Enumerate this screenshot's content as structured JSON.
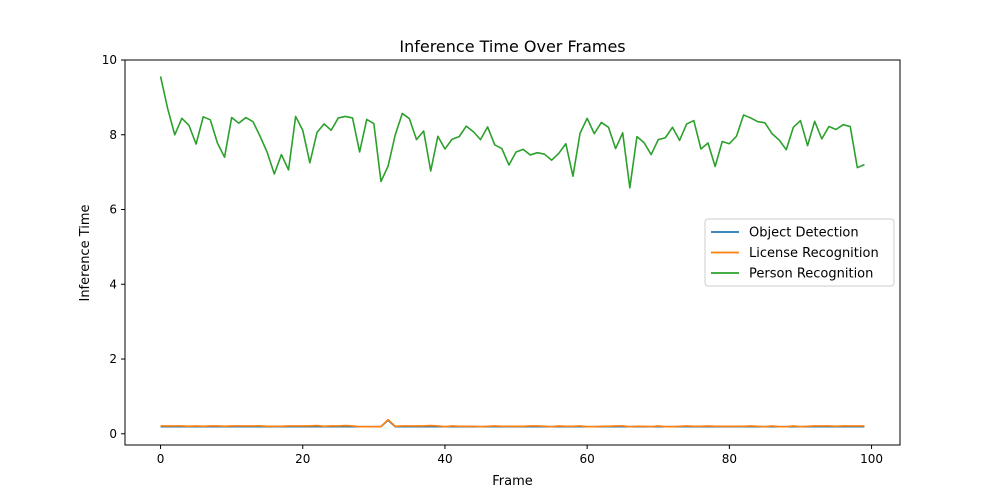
{
  "chart_data": {
    "type": "line",
    "title": "Inference Time Over Frames",
    "xlabel": "Frame",
    "ylabel": "Inference Time",
    "xlim": [
      -5,
      104
    ],
    "ylim": [
      -0.3,
      10.0
    ],
    "xticks": [
      0,
      20,
      40,
      60,
      80,
      100
    ],
    "yticks": [
      0,
      2,
      4,
      6,
      8,
      10
    ],
    "grid": false,
    "legend_position": "center-right",
    "x": [
      0,
      1,
      2,
      3,
      4,
      5,
      6,
      7,
      8,
      9,
      10,
      11,
      12,
      13,
      14,
      15,
      16,
      17,
      18,
      19,
      20,
      21,
      22,
      23,
      24,
      25,
      26,
      27,
      28,
      29,
      30,
      31,
      32,
      33,
      34,
      35,
      36,
      37,
      38,
      39,
      40,
      41,
      42,
      43,
      44,
      45,
      46,
      47,
      48,
      49,
      50,
      51,
      52,
      53,
      54,
      55,
      56,
      57,
      58,
      59,
      60,
      61,
      62,
      63,
      64,
      65,
      66,
      67,
      68,
      69,
      70,
      71,
      72,
      73,
      74,
      75,
      76,
      77,
      78,
      79,
      80,
      81,
      82,
      83,
      84,
      85,
      86,
      87,
      88,
      89,
      90,
      91,
      92,
      93,
      94,
      95,
      96,
      97,
      98,
      99
    ],
    "series": [
      {
        "name": "Object Detection",
        "color": "#1f77b4",
        "values": [
          0.19,
          0.19,
          0.19,
          0.19,
          0.19,
          0.19,
          0.19,
          0.19,
          0.19,
          0.19,
          0.19,
          0.19,
          0.19,
          0.19,
          0.19,
          0.19,
          0.19,
          0.19,
          0.19,
          0.19,
          0.19,
          0.19,
          0.19,
          0.19,
          0.19,
          0.19,
          0.19,
          0.19,
          0.19,
          0.19,
          0.19,
          0.19,
          0.36,
          0.19,
          0.19,
          0.19,
          0.19,
          0.19,
          0.19,
          0.19,
          0.19,
          0.19,
          0.19,
          0.19,
          0.19,
          0.19,
          0.19,
          0.19,
          0.19,
          0.19,
          0.19,
          0.19,
          0.19,
          0.19,
          0.19,
          0.19,
          0.19,
          0.19,
          0.19,
          0.19,
          0.19,
          0.19,
          0.19,
          0.19,
          0.19,
          0.19,
          0.19,
          0.19,
          0.19,
          0.19,
          0.19,
          0.19,
          0.19,
          0.19,
          0.19,
          0.19,
          0.19,
          0.19,
          0.19,
          0.19,
          0.19,
          0.19,
          0.19,
          0.19,
          0.19,
          0.19,
          0.19,
          0.19,
          0.19,
          0.19,
          0.19,
          0.19,
          0.19,
          0.19,
          0.19,
          0.19,
          0.19,
          0.19,
          0.19,
          0.19
        ]
      },
      {
        "name": "License Recognition",
        "color": "#ff7f0e",
        "values": [
          0.21,
          0.21,
          0.21,
          0.21,
          0.2,
          0.21,
          0.2,
          0.21,
          0.21,
          0.2,
          0.21,
          0.21,
          0.21,
          0.21,
          0.21,
          0.2,
          0.2,
          0.2,
          0.21,
          0.21,
          0.21,
          0.21,
          0.22,
          0.2,
          0.21,
          0.21,
          0.22,
          0.21,
          0.19,
          0.19,
          0.19,
          0.19,
          0.38,
          0.2,
          0.21,
          0.21,
          0.21,
          0.21,
          0.22,
          0.21,
          0.19,
          0.21,
          0.2,
          0.2,
          0.2,
          0.19,
          0.2,
          0.21,
          0.2,
          0.2,
          0.2,
          0.2,
          0.21,
          0.21,
          0.2,
          0.19,
          0.21,
          0.2,
          0.2,
          0.21,
          0.19,
          0.19,
          0.2,
          0.2,
          0.21,
          0.21,
          0.19,
          0.2,
          0.2,
          0.19,
          0.21,
          0.19,
          0.19,
          0.2,
          0.21,
          0.2,
          0.2,
          0.21,
          0.2,
          0.2,
          0.2,
          0.2,
          0.2,
          0.21,
          0.2,
          0.19,
          0.21,
          0.19,
          0.19,
          0.21,
          0.19,
          0.2,
          0.21,
          0.21,
          0.21,
          0.2,
          0.21,
          0.21,
          0.21,
          0.21
        ]
      },
      {
        "name": "Person Recognition",
        "color": "#2ca02c",
        "values": [
          9.56,
          8.7,
          8.0,
          8.44,
          8.25,
          7.75,
          8.48,
          8.4,
          7.78,
          7.4,
          8.46,
          8.31,
          8.46,
          8.35,
          7.96,
          7.53,
          6.95,
          7.47,
          7.06,
          8.49,
          8.12,
          7.25,
          8.06,
          8.29,
          8.12,
          8.45,
          8.49,
          8.45,
          7.54,
          8.41,
          8.3,
          6.75,
          7.16,
          7.99,
          8.57,
          8.43,
          7.87,
          8.1,
          7.03,
          7.96,
          7.62,
          7.88,
          7.95,
          8.23,
          8.08,
          7.87,
          8.21,
          7.73,
          7.63,
          7.19,
          7.54,
          7.61,
          7.46,
          7.52,
          7.48,
          7.32,
          7.5,
          7.76,
          6.89,
          8.04,
          8.44,
          8.03,
          8.33,
          8.2,
          7.63,
          8.05,
          6.58,
          7.95,
          7.79,
          7.47,
          7.87,
          7.92,
          8.2,
          7.85,
          8.29,
          8.38,
          7.62,
          7.78,
          7.15,
          7.82,
          7.76,
          7.96,
          8.53,
          8.45,
          8.35,
          8.32,
          8.03,
          7.86,
          7.6,
          8.2,
          8.38,
          7.71,
          8.36,
          7.89,
          8.22,
          8.14,
          8.27,
          8.22,
          7.12,
          7.2
        ]
      }
    ]
  }
}
